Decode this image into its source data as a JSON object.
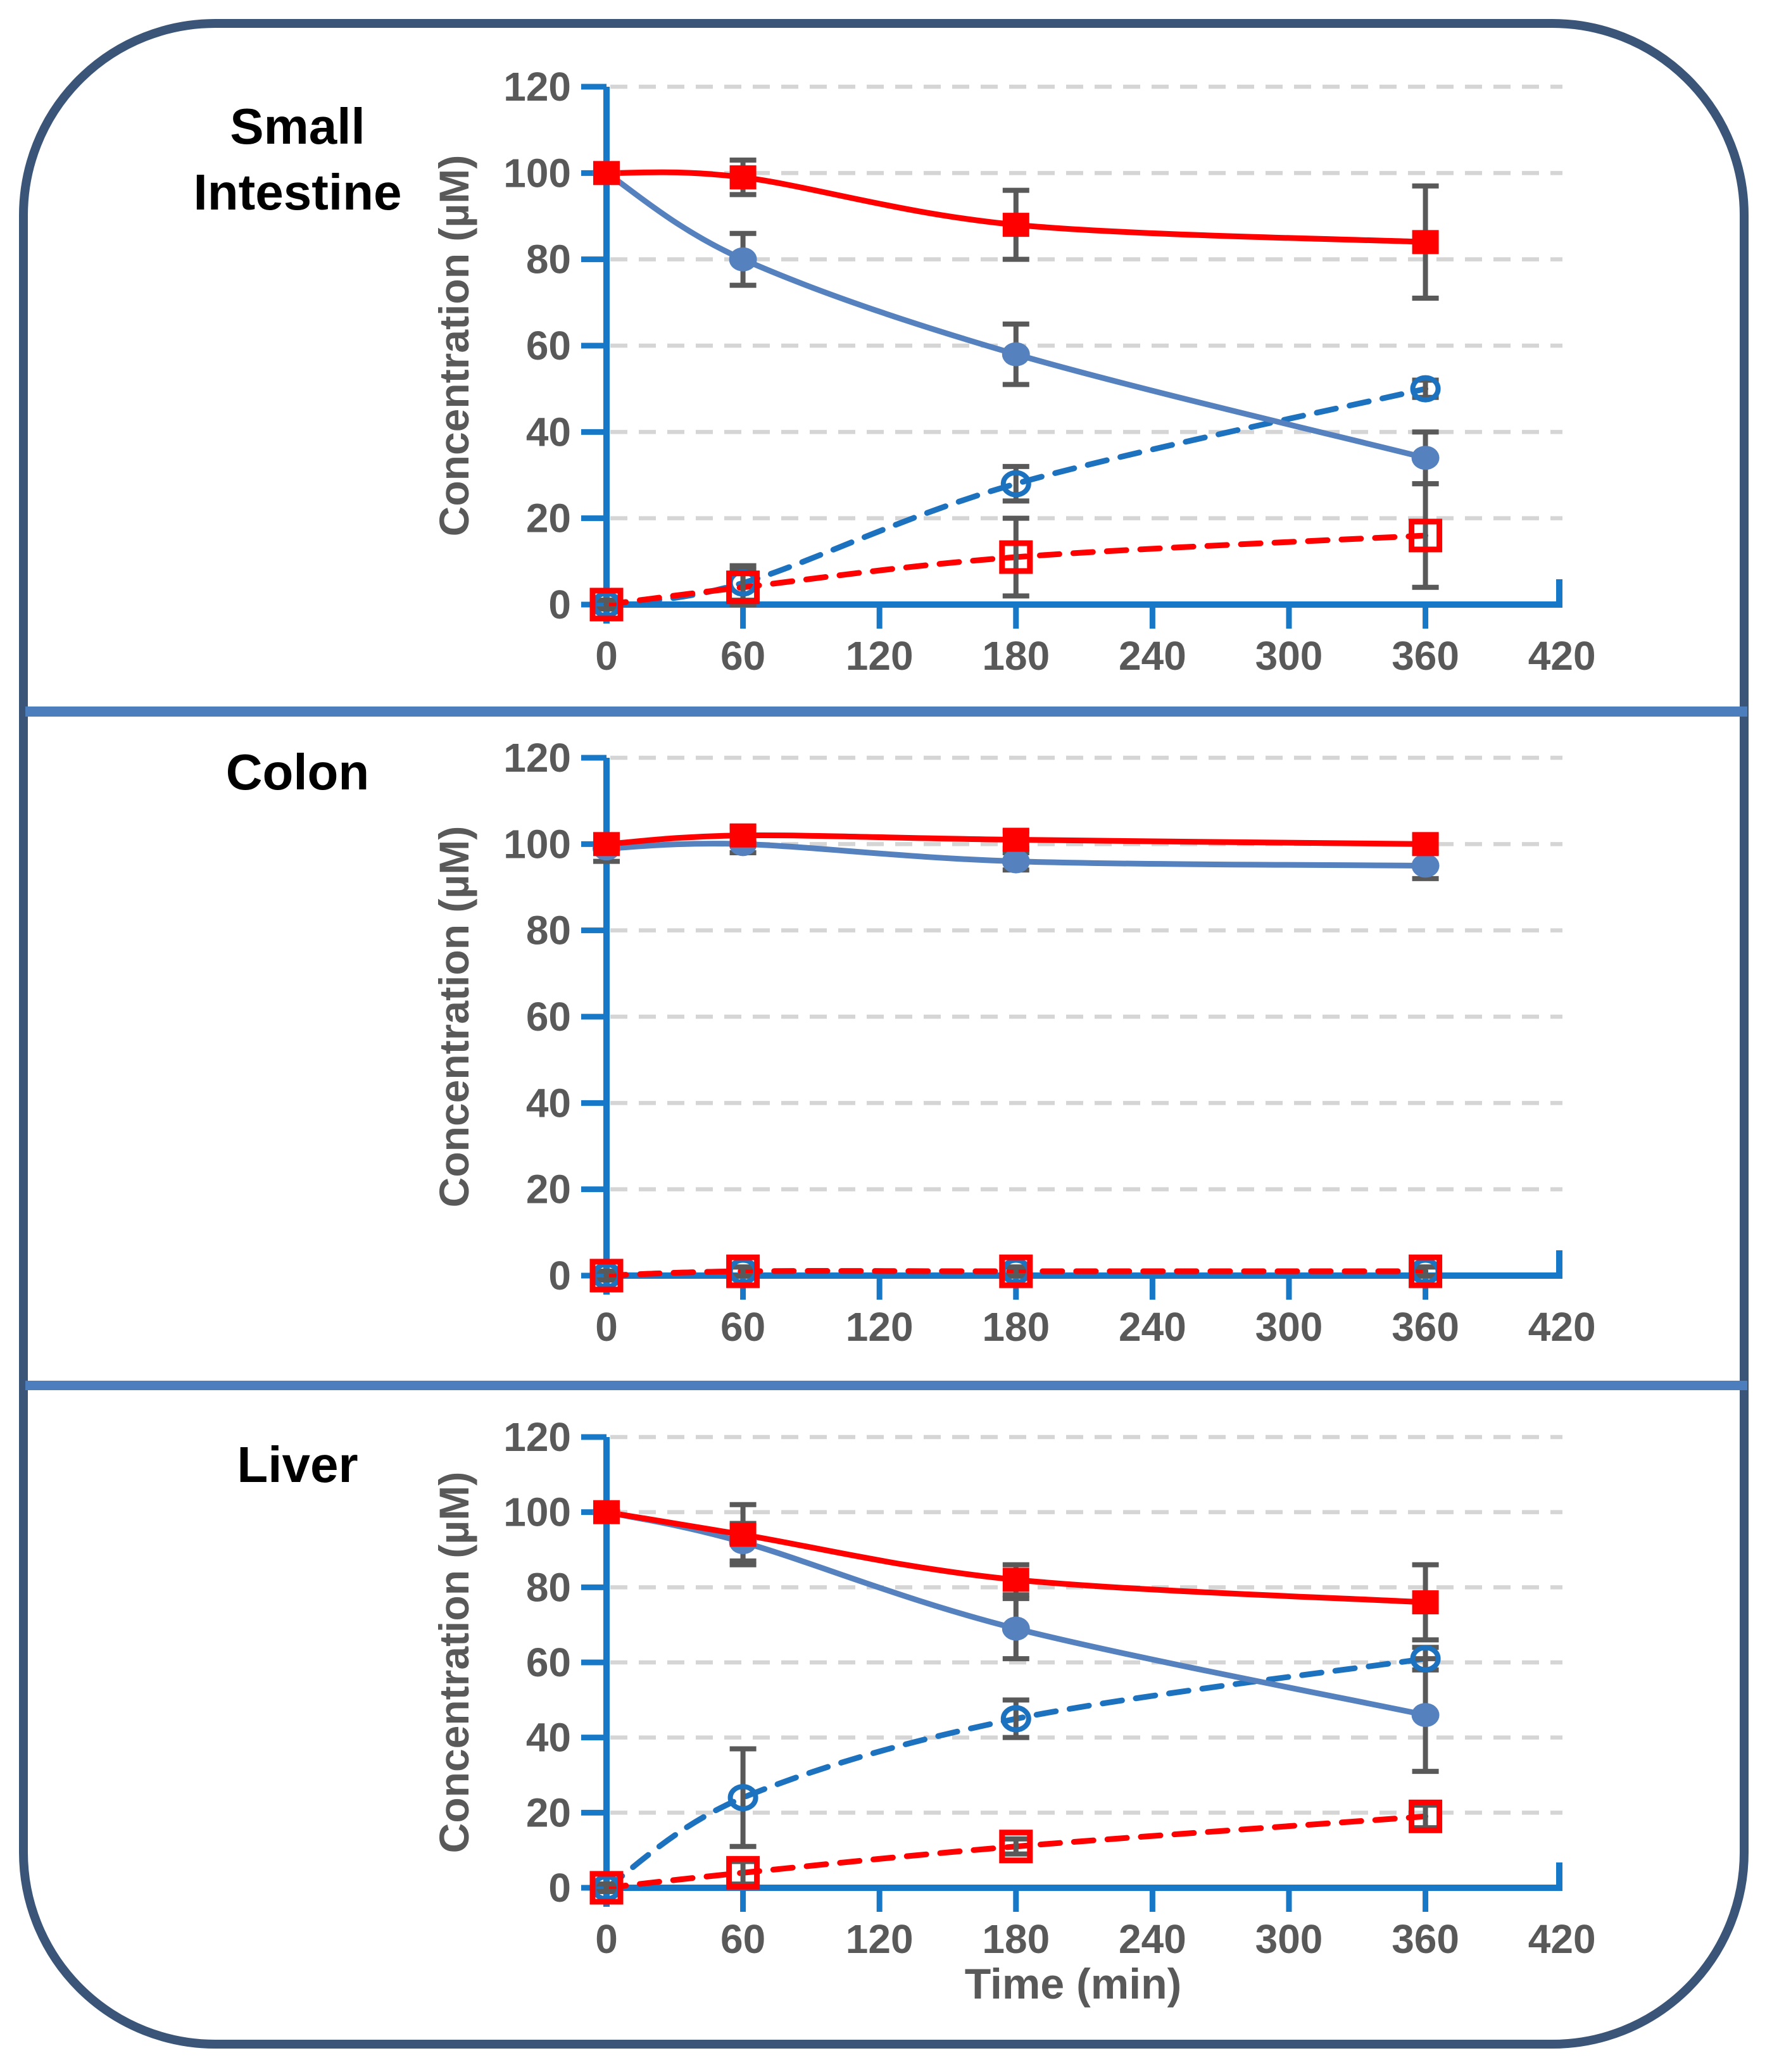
{
  "figure": {
    "panels": [
      {
        "title": "Small Intestine"
      },
      {
        "title": "Colon"
      },
      {
        "title": "Liver"
      }
    ]
  },
  "colors": {
    "red_series": "#FF0000",
    "blue_fill_series": "#5581BE",
    "blue_dashed_series": "#1D72BF",
    "axis_blue": "#1878C8",
    "gridline_gray": "#D5D5D5",
    "error_bar_gray": "#595959",
    "tick_label_gray": "#595959",
    "title_black": "#000000",
    "divider_blue": "#4C7DBD",
    "border_blue": "#3A5578"
  },
  "chart_data": [
    {
      "type": "line",
      "panel": "Small Intestine",
      "x": [
        0,
        60,
        180,
        360
      ],
      "x_ticks": [
        0,
        60,
        120,
        180,
        240,
        300,
        360,
        420
      ],
      "xlim": [
        0,
        420
      ],
      "xlabel": "",
      "ylabel": "Concentration (µM)",
      "ylim": [
        0,
        120
      ],
      "y_ticks": [
        0,
        20,
        40,
        60,
        80,
        100,
        120
      ],
      "grid": true,
      "legend": "none",
      "series": [
        {
          "name": "blue-open-circle-dashed",
          "marker": "open-circle",
          "line": "dashed",
          "color": "blue",
          "values": [
            0,
            5,
            28,
            50
          ],
          "errors": [
            1,
            4,
            4,
            2
          ]
        },
        {
          "name": "red-open-square-dashed",
          "marker": "open-square",
          "line": "dashed",
          "color": "red",
          "values": [
            0,
            4,
            11,
            16
          ],
          "errors": [
            1,
            4,
            9,
            12
          ]
        },
        {
          "name": "blue-filled-circle-solid",
          "marker": "filled-circle",
          "line": "solid",
          "color": "blue",
          "values": [
            100,
            80,
            58,
            34
          ],
          "errors": [
            2,
            6,
            7,
            6
          ]
        },
        {
          "name": "red-filled-square-solid",
          "marker": "filled-square",
          "line": "solid",
          "color": "red",
          "values": [
            100,
            99,
            88,
            84
          ],
          "errors": [
            2,
            4,
            8,
            13
          ]
        }
      ]
    },
    {
      "type": "line",
      "panel": "Colon",
      "x": [
        0,
        60,
        180,
        360
      ],
      "x_ticks": [
        0,
        60,
        120,
        180,
        240,
        300,
        360,
        420
      ],
      "xlim": [
        0,
        420
      ],
      "xlabel": "",
      "ylabel": "Concentration (µM)",
      "ylim": [
        0,
        120
      ],
      "y_ticks": [
        0,
        20,
        40,
        60,
        80,
        100,
        120
      ],
      "grid": true,
      "legend": "none",
      "series": [
        {
          "name": "blue-open-circle-dashed",
          "marker": "open-circle",
          "line": "dashed",
          "color": "blue",
          "values": [
            0,
            1,
            1,
            1
          ],
          "errors": [
            1,
            1,
            1,
            1
          ]
        },
        {
          "name": "red-open-square-dashed",
          "marker": "open-square",
          "line": "dashed",
          "color": "red",
          "values": [
            0,
            1,
            1,
            1
          ],
          "errors": [
            1,
            1,
            1,
            1
          ]
        },
        {
          "name": "blue-filled-circle-solid",
          "marker": "filled-circle",
          "line": "solid",
          "color": "blue",
          "values": [
            99,
            100,
            96,
            95
          ],
          "errors": [
            3,
            2,
            2,
            3
          ]
        },
        {
          "name": "red-filled-square-solid",
          "marker": "filled-square",
          "line": "solid",
          "color": "red",
          "values": [
            100,
            102,
            101,
            100
          ],
          "errors": [
            2,
            2,
            2,
            2
          ]
        }
      ]
    },
    {
      "type": "line",
      "panel": "Liver",
      "x": [
        0,
        60,
        180,
        360
      ],
      "x_ticks": [
        0,
        60,
        120,
        180,
        240,
        300,
        360,
        420
      ],
      "xlim": [
        0,
        420
      ],
      "xlabel": "Time (min)",
      "ylabel": "Concentration (µM)",
      "ylim": [
        0,
        120
      ],
      "y_ticks": [
        0,
        20,
        40,
        60,
        80,
        100,
        120
      ],
      "grid": true,
      "legend": "none",
      "series": [
        {
          "name": "blue-open-circle-dashed",
          "marker": "open-circle",
          "line": "dashed",
          "color": "blue",
          "values": [
            0,
            24,
            45,
            61
          ],
          "errors": [
            1,
            13,
            5,
            3
          ]
        },
        {
          "name": "red-open-square-dashed",
          "marker": "open-square",
          "line": "dashed",
          "color": "red",
          "values": [
            0,
            4,
            11,
            19
          ],
          "errors": [
            1,
            3,
            2,
            3
          ]
        },
        {
          "name": "blue-filled-circle-solid",
          "marker": "filled-circle",
          "line": "solid",
          "color": "blue",
          "values": [
            100,
            92,
            69,
            46
          ],
          "errors": [
            2,
            5,
            8,
            15
          ]
        },
        {
          "name": "red-filled-square-solid",
          "marker": "filled-square",
          "line": "solid",
          "color": "red",
          "values": [
            100,
            94,
            82,
            76
          ],
          "errors": [
            2,
            8,
            4,
            10
          ]
        }
      ]
    }
  ]
}
